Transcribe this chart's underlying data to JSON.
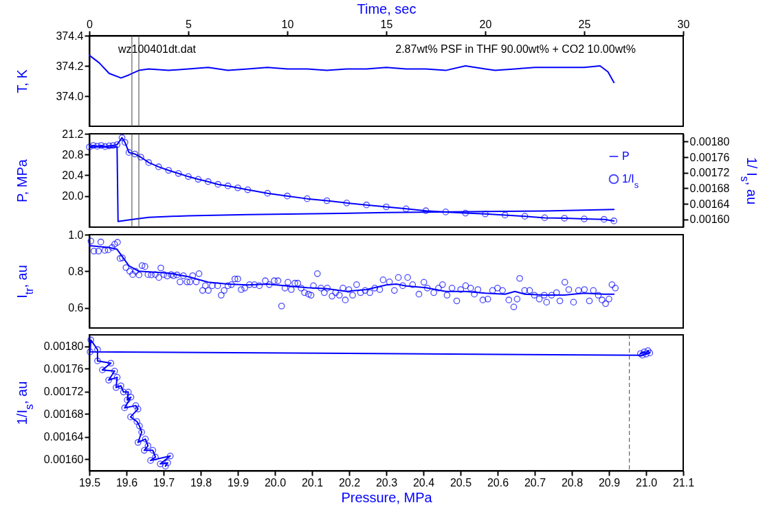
{
  "chart_data": [
    {
      "type": "line",
      "xlabel": "Time, sec",
      "ylabel": "T, K",
      "xlim": [
        0,
        30
      ],
      "xticks": [
        0,
        5,
        10,
        15,
        20,
        25,
        30
      ],
      "ylim": [
        373.8,
        374.4
      ],
      "yticks": [
        {
          "value": 374.0,
          "label": "374.0"
        },
        374.2,
        374.4
      ],
      "grid": false,
      "annotations": [
        "wz100401dt.dat",
        "2.87wt% PSF in THF 90.00wt% + CO2 10.00wt%"
      ],
      "ref_lines": [
        {
          "axis": "x",
          "value": 2.15,
          "color": "#404040"
        },
        {
          "axis": "x",
          "value": 2.5,
          "color": "#404040"
        }
      ],
      "series": [
        {
          "color": "#0000ff",
          "x": [
            0,
            0.5,
            1.0,
            1.6,
            2.0,
            2.5,
            3.0,
            4,
            5,
            6,
            7,
            8,
            9,
            10,
            11,
            12,
            13,
            14,
            15,
            16,
            17,
            18,
            19,
            20,
            20.5,
            21.5,
            22.5,
            24,
            25,
            25.8,
            26.2,
            26.5
          ],
          "values": [
            374.27,
            374.22,
            374.15,
            374.12,
            374.14,
            374.17,
            374.18,
            374.17,
            374.18,
            374.19,
            374.17,
            374.18,
            374.19,
            374.18,
            374.18,
            374.17,
            374.18,
            374.18,
            374.19,
            374.18,
            374.18,
            374.17,
            374.2,
            374.18,
            374.17,
            374.18,
            374.19,
            374.19,
            374.19,
            374.2,
            374.16,
            374.09
          ]
        }
      ]
    },
    {
      "type": "line",
      "ylabel": "P, MPa",
      "y2label": "1/ I$_{s}$, au",
      "xlim": [
        0,
        30
      ],
      "ylim": [
        19.4,
        21.2
      ],
      "yticks": [
        {
          "value": 20.0,
          "label": "20.0"
        },
        20.4,
        20.8,
        21.2
      ],
      "y2lim": [
        0.00158,
        0.00182
      ],
      "y2ticks": [
        {
          "value": 0.0016,
          "label": "0.00160"
        },
        {
          "value": 0.00164,
          "label": "0.00164"
        },
        {
          "value": 0.00168,
          "label": "0.00168"
        },
        {
          "value": 0.00172,
          "label": "0.00172"
        },
        {
          "value": 0.00176,
          "label": "0.00176"
        },
        {
          "value": 0.0018,
          "label": "0.00180"
        }
      ],
      "tick_labels": "y",
      "grid": false,
      "legend": "top right",
      "ref_lines": [
        {
          "axis": "x",
          "value": 2.15,
          "color": "#404040"
        },
        {
          "axis": "x",
          "value": 2.5,
          "color": "#404040"
        }
      ],
      "series": [
        {
          "name": "P",
          "color": "#0000ff",
          "marker": "none",
          "x": [
            0,
            0.5,
            1.0,
            1.4,
            1.45,
            2.0,
            3,
            5,
            8,
            12,
            15,
            17.5,
            20,
            23,
            26.5
          ],
          "values": [
            20.94,
            20.95,
            20.94,
            20.95,
            19.51,
            19.54,
            19.59,
            19.62,
            19.64,
            19.66,
            19.68,
            19.69,
            19.7,
            19.71,
            19.74
          ]
        },
        {
          "name": "1/I$_{s}$",
          "color": "#0000ff",
          "marker": "circle",
          "axis": "y2",
          "x": [
            0,
            0.2,
            0.4,
            0.6,
            0.8,
            1.0,
            1.2,
            1.4,
            1.65,
            1.8,
            2.0,
            2.3,
            2.6,
            3.0,
            3.5,
            4.0,
            4.5,
            5.0,
            5.5,
            6.0,
            6.5,
            7.0,
            7.5,
            8.0,
            9.0,
            10,
            11,
            12,
            13,
            14,
            15,
            16,
            17,
            18,
            19,
            20,
            21,
            22,
            23,
            24,
            25,
            26,
            26.5
          ],
          "values": [
            0.001786,
            0.00179,
            0.001788,
            0.00179,
            0.001787,
            0.001789,
            0.00179,
            0.001792,
            0.00181,
            0.001798,
            0.001772,
            0.001768,
            0.00176,
            0.001746,
            0.001735,
            0.001726,
            0.001718,
            0.00171,
            0.001703,
            0.001697,
            0.00169,
            0.001686,
            0.001681,
            0.001676,
            0.001667,
            0.00166,
            0.001653,
            0.001648,
            0.001642,
            0.001637,
            0.001632,
            0.001627,
            0.001622,
            0.001619,
            0.001616,
            0.001614,
            0.001611,
            0.001608,
            0.001604,
            0.001603,
            0.001601,
            0.0016,
            0.001596
          ]
        }
      ]
    },
    {
      "type": "scatter",
      "ylabel": "I$_{tr}$, au",
      "xlim": [
        0,
        30
      ],
      "ylim": [
        0.49,
        1.0
      ],
      "yticks": [
        0.6,
        0.8,
        {
          "value": 1.0,
          "label": "1.0"
        }
      ],
      "tick_labels": "y",
      "grid": false,
      "marker": "circle",
      "series": [
        {
          "color": "#0000ff",
          "x": [
            0.08,
            0.23,
            0.46,
            0.58,
            0.78,
            0.95,
            1.15,
            1.28,
            1.42,
            1.55,
            1.67,
            1.85,
            2.04,
            2.19,
            2.34,
            2.51,
            2.66,
            2.81,
            2.96,
            3.13,
            3.33,
            3.51,
            3.61,
            3.76,
            3.93,
            4.13,
            4.25,
            4.43,
            4.58,
            4.75,
            4.93,
            5.08,
            5.22,
            5.4,
            5.54,
            5.72,
            5.86,
            6.01,
            6.21,
            6.48,
            6.66,
            6.81,
            7.0,
            7.18,
            7.35,
            7.5,
            7.67,
            7.85,
            8.09,
            8.34,
            8.59,
            8.89,
            9.09,
            9.34,
            9.53,
            9.71,
            9.88,
            10.03,
            10.2,
            10.38,
            10.53,
            10.7,
            10.87,
            11.07,
            11.2,
            11.32,
            11.52,
            11.7,
            11.87,
            12.02,
            12.26,
            12.44,
            12.63,
            12.81,
            12.93,
            13.11,
            13.3,
            13.5,
            13.7,
            13.93,
            14.17,
            14.42,
            14.67,
            14.84,
            15.16,
            15.41,
            15.61,
            15.83,
            16.08,
            16.33,
            16.65,
            16.9,
            17.07,
            17.4,
            17.64,
            17.84,
            18.07,
            18.32,
            18.56,
            18.76,
            19.01,
            19.26,
            19.45,
            19.63,
            19.88,
            20.13,
            20.37,
            20.62,
            20.87,
            21.19,
            21.44,
            21.61,
            21.74,
            21.99,
            22.24,
            22.48,
            22.73,
            22.98,
            23.1,
            23.35,
            23.6,
            23.77,
            24.02,
            24.22,
            24.46,
            24.71,
            25.01,
            25.26,
            25.46,
            25.71,
            25.9,
            26.08,
            26.25,
            26.4,
            26.57
          ],
          "values": [
            0.965,
            0.91,
            0.91,
            0.96,
            0.914,
            0.917,
            0.93,
            0.948,
            0.958,
            0.87,
            0.873,
            0.82,
            0.8,
            0.782,
            0.8,
            0.78,
            0.831,
            0.826,
            0.782,
            0.78,
            0.782,
            0.766,
            0.818,
            0.782,
            0.774,
            0.782,
            0.776,
            0.78,
            0.742,
            0.776,
            0.742,
            0.742,
            0.776,
            0.742,
            0.787,
            0.695,
            0.721,
            0.695,
            0.721,
            0.721,
            0.669,
            0.695,
            0.721,
            0.727,
            0.758,
            0.758,
            0.7,
            0.708,
            0.727,
            0.727,
            0.721,
            0.748,
            0.727,
            0.748,
            0.748,
            0.61,
            0.708,
            0.74,
            0.7,
            0.735,
            0.735,
            0.708,
            0.683,
            0.675,
            0.669,
            0.721,
            0.787,
            0.708,
            0.683,
            0.708,
            0.664,
            0.683,
            0.669,
            0.708,
            0.643,
            0.7,
            0.669,
            0.727,
            0.683,
            0.695,
            0.683,
            0.708,
            0.7,
            0.753,
            0.742,
            0.695,
            0.766,
            0.721,
            0.766,
            0.727,
            0.675,
            0.74,
            0.708,
            0.683,
            0.708,
            0.727,
            0.669,
            0.708,
            0.638,
            0.7,
            0.721,
            0.708,
            0.675,
            0.7,
            0.643,
            0.648,
            0.695,
            0.708,
            0.695,
            0.643,
            0.605,
            0.648,
            0.761,
            0.695,
            0.695,
            0.669,
            0.648,
            0.669,
            0.631,
            0.669,
            0.683,
            0.638,
            0.74,
            0.7,
            0.631,
            0.695,
            0.7,
            0.638,
            0.695,
            0.669,
            0.643,
            0.623,
            0.648,
            0.727,
            0.708
          ]
        },
        {
          "type": "line",
          "color": "#0000ff",
          "marker": "none",
          "x": [
            0,
            1.0,
            1.4,
            2.0,
            2.5,
            4,
            5,
            6,
            7,
            8,
            9,
            10,
            11,
            12,
            13,
            14,
            15,
            15.5,
            16,
            17,
            18,
            19,
            20,
            21,
            21.5,
            22,
            23,
            24,
            25,
            26,
            26.5
          ],
          "values": [
            0.94,
            0.93,
            0.92,
            0.83,
            0.8,
            0.79,
            0.77,
            0.74,
            0.73,
            0.725,
            0.73,
            0.72,
            0.71,
            0.705,
            0.69,
            0.7,
            0.725,
            0.73,
            0.72,
            0.71,
            0.69,
            0.69,
            0.68,
            0.675,
            0.69,
            0.675,
            0.67,
            0.67,
            0.68,
            0.675,
            0.675
          ]
        }
      ]
    },
    {
      "type": "line",
      "xlabel": "Pressure, MPa",
      "ylabel": "1/I$_{s}$, au",
      "xlim": [
        19.5,
        21.1
      ],
      "xticks": [
        19.5,
        19.6,
        19.7,
        19.8,
        19.9,
        {
          "value": 20.0,
          "label": "20.0"
        },
        20.1,
        20.2,
        20.3,
        20.4,
        20.5,
        20.6,
        20.7,
        20.8,
        20.9,
        {
          "value": 21.0,
          "label": "21.0"
        },
        21.1
      ],
      "ylim": [
        0.00158,
        0.00182
      ],
      "yticks": [
        {
          "value": 0.0016,
          "label": "0.00160"
        },
        {
          "value": 0.00164,
          "label": "0.00164"
        },
        {
          "value": 0.00168,
          "label": "0.00168"
        },
        {
          "value": 0.00172,
          "label": "0.00172"
        },
        {
          "value": 0.00176,
          "label": "0.00176"
        },
        {
          "value": 0.0018,
          "label": "0.00180"
        }
      ],
      "grid": false,
      "marker": "circle",
      "ref_lines": [
        {
          "axis": "x",
          "value": 20.955,
          "color": "#404040",
          "line_style": "dashed"
        }
      ],
      "series": [
        {
          "color": "#0000ff",
          "x": [
            20.985,
            20.995,
            21.0,
            21.005,
            21.01,
            20.99,
            19.502,
            19.504,
            19.522,
            19.522,
            19.558,
            19.535,
            19.568,
            19.552,
            19.575,
            19.572,
            19.585,
            19.592,
            19.605,
            19.602,
            19.612,
            19.595,
            19.625,
            19.631,
            19.611,
            19.628,
            19.635,
            19.641,
            19.631,
            19.651,
            19.658,
            19.648,
            19.671,
            19.678,
            19.665,
            19.718,
            19.691,
            19.711,
            19.705
          ],
          "values": [
            0.001787,
            0.00179,
            0.001786,
            0.001792,
            0.001788,
            0.001784,
            0.00179,
            0.001811,
            0.001794,
            0.001774,
            0.00177,
            0.001758,
            0.001756,
            0.00174,
            0.001745,
            0.001727,
            0.00173,
            0.001719,
            0.001719,
            0.001705,
            0.00171,
            0.001691,
            0.001695,
            0.001689,
            0.001675,
            0.001667,
            0.001659,
            0.001648,
            0.00163,
            0.001636,
            0.001624,
            0.001616,
            0.001616,
            0.001604,
            0.001598,
            0.001606,
            0.001592,
            0.001594,
            0.001588
          ]
        }
      ]
    }
  ]
}
